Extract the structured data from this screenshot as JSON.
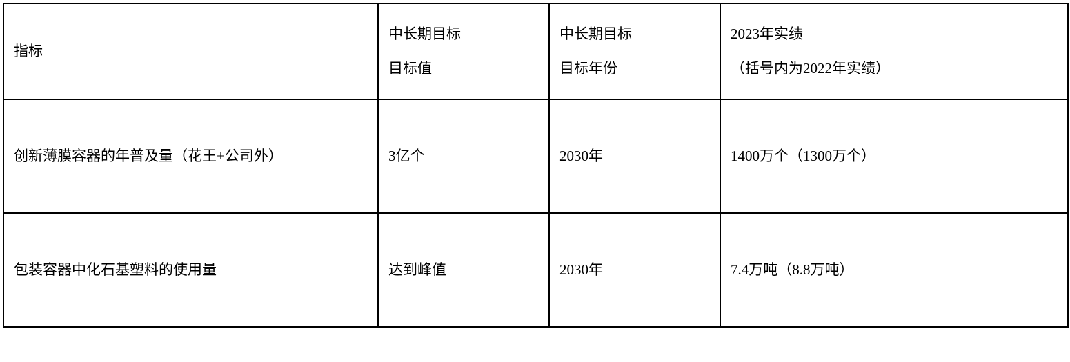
{
  "table": {
    "columns": {
      "c1_width": 543,
      "c2_width": 248,
      "c3_width": 248,
      "c4_width": 504
    },
    "border_color": "#000000",
    "background_color": "#ffffff",
    "text_color": "#000000",
    "font_size_pt": 16,
    "font_family": "SimSun",
    "header": {
      "col1_line1": "指标",
      "col2_line1": "中长期目标",
      "col2_line2": "目标值",
      "col3_line1": "中长期目标",
      "col3_line2": "目标年份",
      "col4_line1": "2023年实绩",
      "col4_line2": "（括号内为2022年实绩）"
    },
    "rows": [
      {
        "indicator": "创新薄膜容器的年普及量（花王+公司外）",
        "target_value": "3亿个",
        "target_year": "2030年",
        "result": "1400万个（1300万个）"
      },
      {
        "indicator": "包装容器中化石基塑料的使用量",
        "target_value": "达到峰值",
        "target_year": "2030年",
        "result": "7.4万吨（8.8万吨）"
      }
    ]
  }
}
